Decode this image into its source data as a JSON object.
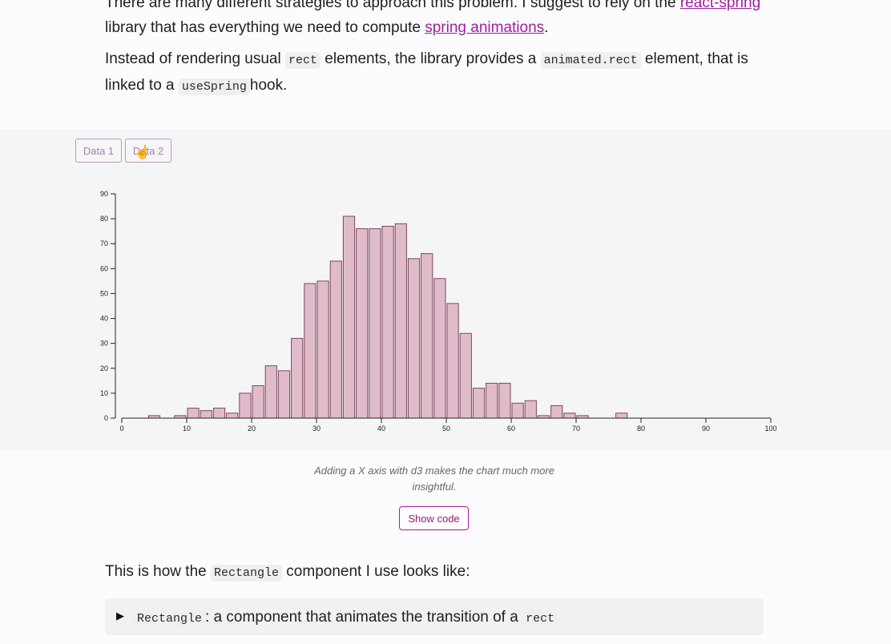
{
  "article": {
    "p1_start": "There are many different strategies to approach this problem. I suggest to rely on the ",
    "p1_link1": "react-spring",
    "p1_mid": " library that has everything we need to compute ",
    "p1_link2": "spring animations",
    "p1_end": ".",
    "p2_a": "Instead of rendering usual ",
    "p2_code1": "rect",
    "p2_b": " elements, the library provides a ",
    "p2_code2": "animated.rect",
    "p2_c": " element, that is linked to a ",
    "p2_code3": "useSpring",
    "p2_d": "hook.",
    "p3_a": "This is how the ",
    "p3_code": "Rectangle",
    "p3_b": " component I use looks like:"
  },
  "buttons": {
    "data1": "Data 1",
    "data2": "Data 2",
    "show_code": "Show code"
  },
  "caption": "Adding a X axis with d3 makes the chart much more insightful.",
  "details": {
    "code": "Rectangle",
    "text": ": a component that animates the transition of a ",
    "code2": "rect"
  },
  "colors": {
    "bar_fill": "#e0bccb",
    "bar_stroke": "#7d4660",
    "link": "#a01fa0",
    "accent": "#b0198f"
  },
  "chart_data": {
    "type": "bar",
    "title": "",
    "xlabel": "",
    "ylabel": "",
    "bin_width": 2,
    "xlim": [
      0,
      100
    ],
    "ylim": [
      0,
      90
    ],
    "x_ticks": [
      0,
      10,
      20,
      30,
      40,
      50,
      60,
      70,
      80,
      90,
      100
    ],
    "y_ticks": [
      0,
      10,
      20,
      30,
      40,
      50,
      60,
      70,
      80,
      90
    ],
    "bins": [
      {
        "x0": 4,
        "count": 1
      },
      {
        "x0": 8,
        "count": 1
      },
      {
        "x0": 10,
        "count": 4
      },
      {
        "x0": 12,
        "count": 3
      },
      {
        "x0": 14,
        "count": 4
      },
      {
        "x0": 16,
        "count": 2
      },
      {
        "x0": 18,
        "count": 10
      },
      {
        "x0": 20,
        "count": 13
      },
      {
        "x0": 22,
        "count": 21
      },
      {
        "x0": 24,
        "count": 19
      },
      {
        "x0": 26,
        "count": 32
      },
      {
        "x0": 28,
        "count": 54
      },
      {
        "x0": 30,
        "count": 55
      },
      {
        "x0": 32,
        "count": 63
      },
      {
        "x0": 34,
        "count": 81
      },
      {
        "x0": 36,
        "count": 76
      },
      {
        "x0": 38,
        "count": 76
      },
      {
        "x0": 40,
        "count": 77
      },
      {
        "x0": 42,
        "count": 78
      },
      {
        "x0": 44,
        "count": 64
      },
      {
        "x0": 46,
        "count": 66
      },
      {
        "x0": 48,
        "count": 56
      },
      {
        "x0": 50,
        "count": 46
      },
      {
        "x0": 52,
        "count": 34
      },
      {
        "x0": 54,
        "count": 12
      },
      {
        "x0": 56,
        "count": 14
      },
      {
        "x0": 58,
        "count": 14
      },
      {
        "x0": 60,
        "count": 6
      },
      {
        "x0": 62,
        "count": 7
      },
      {
        "x0": 64,
        "count": 1
      },
      {
        "x0": 66,
        "count": 5
      },
      {
        "x0": 68,
        "count": 2
      },
      {
        "x0": 70,
        "count": 1
      },
      {
        "x0": 76,
        "count": 2
      }
    ]
  }
}
